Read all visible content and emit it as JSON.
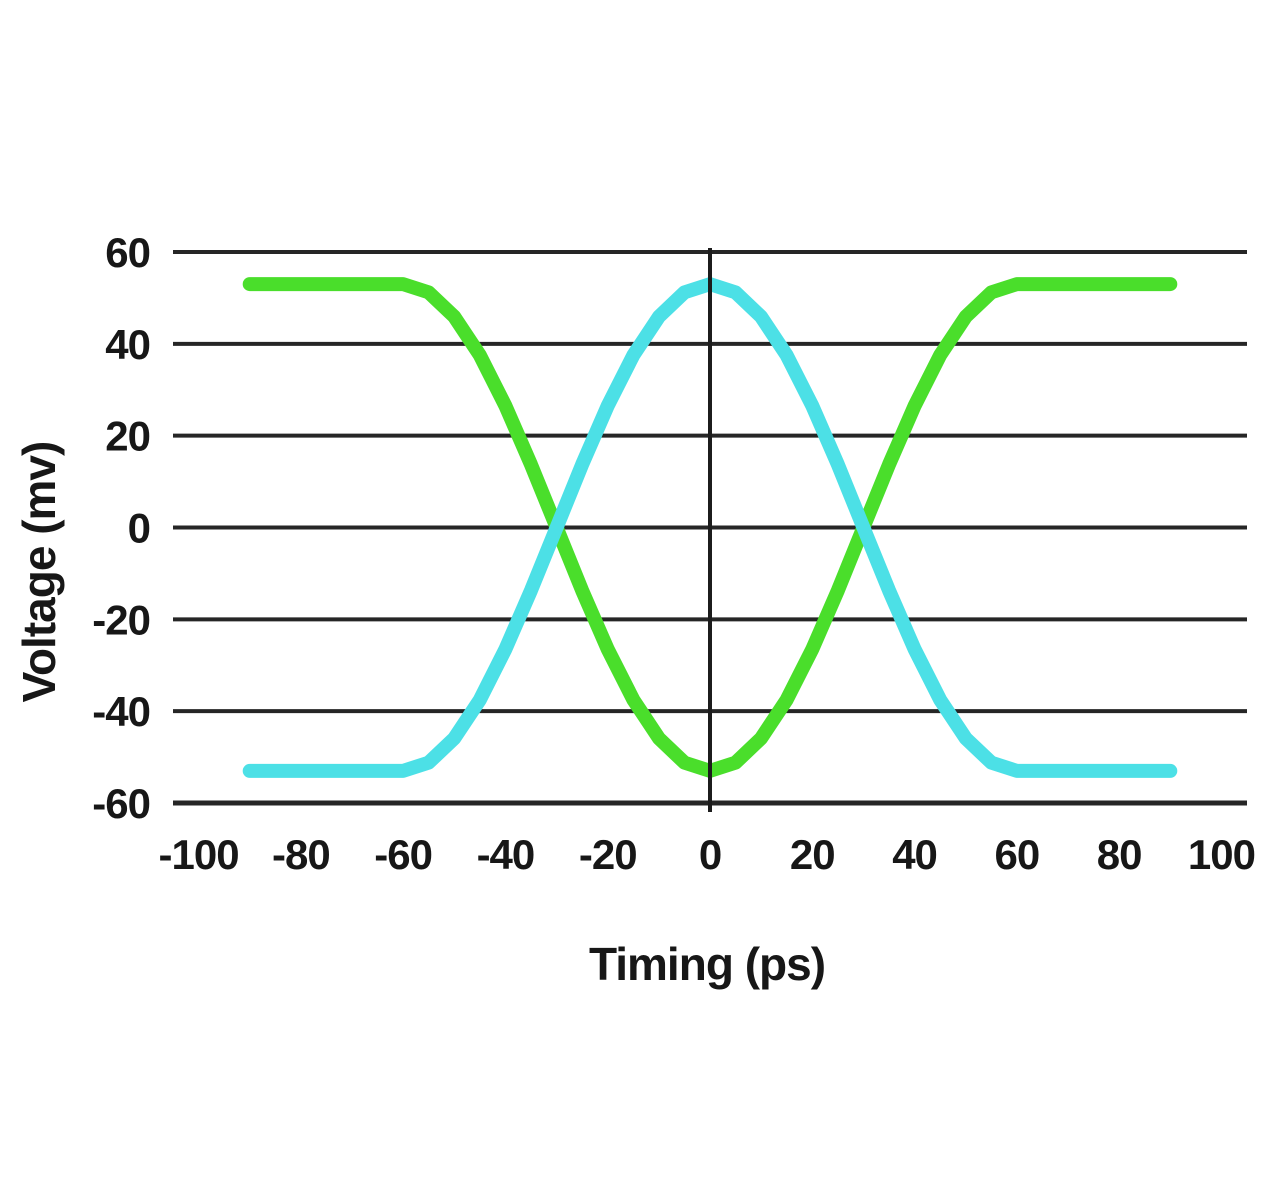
{
  "figure": {
    "background_color": "#ffffff",
    "grid_color": "#262626",
    "text_color": "#171717",
    "zero_line_color": "#1c1c1c"
  },
  "chart_data": {
    "type": "line",
    "title": "",
    "xlabel": "Timing (ps)",
    "ylabel": "Voltage (mv)",
    "xlim": [
      -105,
      105
    ],
    "ylim": [
      -60,
      60
    ],
    "grid": "horizontal",
    "legend": "none",
    "zero_vertical_axis": true,
    "x_ticks": [
      -100,
      -80,
      -60,
      -40,
      -20,
      0,
      20,
      40,
      60,
      80,
      100
    ],
    "x_tick_labels": [
      "-100",
      "-80",
      "-60",
      "-40",
      "-20",
      "0",
      "20",
      "40",
      "60",
      "80",
      "100"
    ],
    "y_ticks": [
      60,
      40,
      20,
      0,
      -20,
      -40,
      -60
    ],
    "y_tick_labels": [
      "60",
      "40",
      "20",
      "0",
      "-20",
      "-40",
      "-60"
    ],
    "line_width": 14,
    "x": [
      -90,
      -85,
      -80,
      -75,
      -70,
      -65,
      -60,
      -55,
      -50,
      -45,
      -40,
      -35,
      -30,
      -25,
      -20,
      -15,
      -10,
      -5,
      0,
      5,
      10,
      15,
      20,
      25,
      30,
      35,
      40,
      45,
      50,
      55,
      60,
      65,
      70,
      75,
      80,
      85,
      90
    ],
    "series": [
      {
        "name": "green-curve",
        "color": "#4ade2b",
        "values": [
          53,
          53,
          53,
          53,
          53,
          53,
          53,
          51.2,
          45.9,
          37.5,
          26.5,
          13.7,
          0,
          -13.7,
          -26.5,
          -37.5,
          -45.9,
          -51.2,
          -53,
          -51.2,
          -45.9,
          -37.5,
          -26.5,
          -13.7,
          0,
          13.7,
          26.5,
          37.5,
          45.9,
          51.2,
          53,
          53,
          53,
          53,
          53,
          53,
          53
        ]
      },
      {
        "name": "cyan-curve",
        "color": "#4ce0e6",
        "values": [
          -53,
          -53,
          -53,
          -53,
          -53,
          -53,
          -53,
          -51.2,
          -45.9,
          -37.5,
          -26.5,
          -13.7,
          0,
          13.7,
          26.5,
          37.5,
          45.9,
          51.2,
          53,
          51.2,
          45.9,
          37.5,
          26.5,
          13.7,
          0,
          -13.7,
          -26.5,
          -37.5,
          -45.9,
          -51.2,
          -53,
          -53,
          -53,
          -53,
          -53,
          -53,
          -53
        ]
      }
    ]
  }
}
